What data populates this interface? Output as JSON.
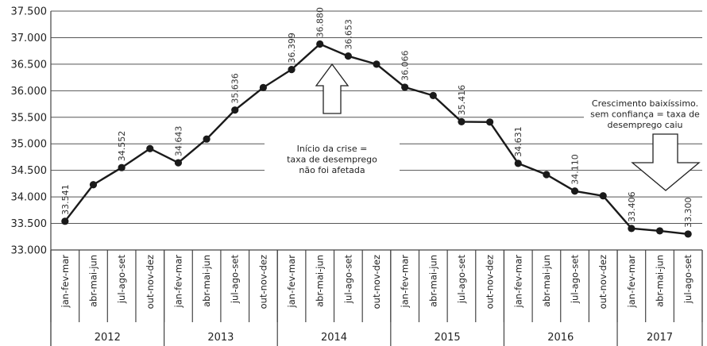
{
  "chart_data": {
    "type": "line",
    "ylim": [
      33000,
      37500
    ],
    "yticks": [
      "33.000",
      "33.500",
      "34.000",
      "34.500",
      "35.000",
      "35.500",
      "36.000",
      "36.500",
      "37.000",
      "37.500"
    ],
    "grid": true,
    "categories": [
      "jan-fev-mar",
      "abr-mai-jun",
      "jul-ago-set",
      "out-nov-dez",
      "jan-fev-mar",
      "abr-mai-jun",
      "jul-ago-set",
      "out-nov-dez",
      "jan-fev-mar",
      "abr-mai-jun",
      "jul-ago-set",
      "out-nov-dez",
      "jan-fev-mar",
      "abr-mai-jun",
      "jul-ago-set",
      "out-nov-dez",
      "jan-fev-mar",
      "abr-mai-jun",
      "jul-ago-set",
      "out-nov-dez",
      "jan-fev-mar",
      "abr-mai-jun",
      "jul-ago-set"
    ],
    "years": [
      {
        "label": "2012",
        "span": 4
      },
      {
        "label": "2013",
        "span": 4
      },
      {
        "label": "2014",
        "span": 4
      },
      {
        "label": "2015",
        "span": 4
      },
      {
        "label": "2016",
        "span": 4
      },
      {
        "label": "2017",
        "span": 3
      }
    ],
    "values": [
      33541,
      34230,
      34552,
      34910,
      34643,
      35090,
      35636,
      36060,
      36399,
      36880,
      36653,
      36500,
      36066,
      35910,
      35416,
      35410,
      34631,
      34420,
      34110,
      34020,
      33406,
      33360,
      33300
    ],
    "data_labels": [
      "33.541",
      "",
      "34.552",
      "",
      "34.643",
      "",
      "35.636",
      "",
      "36.399",
      "36.880",
      "36.653",
      "",
      "36.066",
      "",
      "35.416",
      "",
      "34.631",
      "",
      "34.110",
      "",
      "33.406",
      "",
      "33.300"
    ],
    "annotations": [
      {
        "lines": [
          "Início da crise =",
          "taxa de desemprego",
          "não foi afetada"
        ],
        "arrow": "up"
      },
      {
        "lines": [
          "Crescimento baixíssimo.",
          "sem confiança = taxa de",
          "desemprego caiu"
        ],
        "arrow": "down"
      }
    ]
  }
}
